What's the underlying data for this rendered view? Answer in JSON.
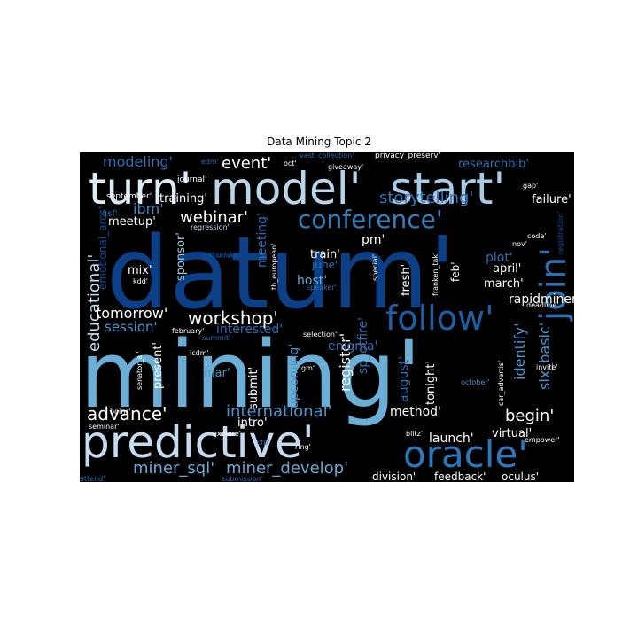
{
  "figure": {
    "title": "Data Mining Topic 2",
    "background": "#000000",
    "palette": [
      "#08306b",
      "#08519c",
      "#2171b5",
      "#4292c6",
      "#6baed6",
      "#9ecae1",
      "#c6dbef",
      "#deebf7"
    ]
  },
  "words": [
    {
      "text": "datum'",
      "color": "#0b3f86"
    },
    {
      "text": "mining'",
      "color": "#6baed6"
    },
    {
      "text": "predictive'",
      "color": "#c6dbef"
    },
    {
      "text": "model'",
      "color": "#b9d5ea"
    },
    {
      "text": "start'",
      "color": "#a7cbe6"
    },
    {
      "text": "turn'",
      "color": "#deebf7"
    },
    {
      "text": "conference'",
      "color": "#2f7fbf"
    },
    {
      "text": "follow'",
      "color": "#1c5fa7"
    },
    {
      "text": "oracle'",
      "color": "#2a78bd"
    },
    {
      "text": "join'",
      "color": "#2c6fb4"
    },
    {
      "text": "workshop'",
      "color": "#ffffff"
    },
    {
      "text": "webinar'",
      "color": "#ffffff"
    },
    {
      "text": "event'",
      "color": "#ffffff"
    },
    {
      "text": "storytelling'",
      "color": "#2f79bb"
    },
    {
      "text": "advance'",
      "color": "#ffffff"
    },
    {
      "text": "international'",
      "color": "#4a95cb"
    },
    {
      "text": "miner_sql'",
      "color": "#6aaad6"
    },
    {
      "text": "miner_develop'",
      "color": "#6aaad6"
    },
    {
      "text": "educational'",
      "color": "#c6dbef"
    },
    {
      "text": "modeling'",
      "color": "#2a70b5"
    },
    {
      "text": "researchbib'",
      "color": "#2a70b5"
    },
    {
      "text": "training'",
      "color": "#ffffff"
    },
    {
      "text": "failure'",
      "color": "#ffffff"
    },
    {
      "text": "ibm'",
      "color": "#3f8ac6"
    },
    {
      "text": "meetup'",
      "color": "#ffffff"
    },
    {
      "text": "pm'",
      "color": "#ffffff"
    },
    {
      "text": "train'",
      "color": "#ffffff"
    },
    {
      "text": "june'",
      "color": "#2a70b5"
    },
    {
      "text": "host'",
      "color": "#6aaad6"
    },
    {
      "text": "plot'",
      "color": "#2a70b5"
    },
    {
      "text": "april'",
      "color": "#ffffff"
    },
    {
      "text": "march'",
      "color": "#ffffff"
    },
    {
      "text": "rapidminer'",
      "color": "#ffffff"
    },
    {
      "text": "tomorrow'",
      "color": "#ffffff"
    },
    {
      "text": "session'",
      "color": "#4a95cb"
    },
    {
      "text": "interested'",
      "color": "#2a70b5"
    },
    {
      "text": "meeting'",
      "color": "#2a70b5"
    },
    {
      "text": "sponsor'",
      "color": "#9ecae1"
    },
    {
      "text": "mix'",
      "color": "#ffffff"
    },
    {
      "text": "emotional_arcs'",
      "color": "#08519c"
    },
    {
      "text": "register'",
      "color": "#ffffff"
    },
    {
      "text": "sp_otfire'",
      "color": "#2a70b5"
    },
    {
      "text": "august'",
      "color": "#2a70b5"
    },
    {
      "text": "tonight'",
      "color": "#ffffff"
    },
    {
      "text": "identify'",
      "color": "#4a95cb"
    },
    {
      "text": "six_basic'",
      "color": "#4a95cb"
    },
    {
      "text": "fresh'",
      "color": "#ffffff"
    },
    {
      "text": "feb'",
      "color": "#ffffff"
    },
    {
      "text": "enigma'",
      "color": "#2a70b5"
    },
    {
      "text": "upcoming'",
      "color": "#4a95cb"
    },
    {
      "text": "submit'",
      "color": "#ffffff"
    },
    {
      "text": "present'",
      "color": "#ffffff"
    },
    {
      "text": "mar'",
      "color": "#4a95cb"
    },
    {
      "text": "method'",
      "color": "#ffffff"
    },
    {
      "text": "begin'",
      "color": "#ffffff"
    },
    {
      "text": "launch'",
      "color": "#ffffff"
    },
    {
      "text": "virtual'",
      "color": "#ffffff"
    },
    {
      "text": "intro'",
      "color": "#ffffff"
    },
    {
      "text": "division'",
      "color": "#ffffff"
    },
    {
      "text": "feedback'",
      "color": "#ffffff"
    },
    {
      "text": "oculus'",
      "color": "#ffffff"
    },
    {
      "text": "journal'",
      "color": "#ffffff"
    },
    {
      "text": "september'",
      "color": "#ffffff"
    },
    {
      "text": "regression'",
      "color": "#c6dbef"
    },
    {
      "text": "edm'",
      "color": "#2a70b5"
    },
    {
      "text": "oct'",
      "color": "#ffffff"
    },
    {
      "text": "vast_collection'",
      "color": "#2a70b5"
    },
    {
      "text": "privacy_preserv'",
      "color": "#ffffff"
    },
    {
      "text": "giveaway'",
      "color": "#ffffff"
    },
    {
      "text": "gap'",
      "color": "#ffffff"
    },
    {
      "text": "registration'",
      "color": "#08519c"
    },
    {
      "text": "code'",
      "color": "#ffffff"
    },
    {
      "text": "nov'",
      "color": "#ffffff"
    },
    {
      "text": "deadline'",
      "color": "#ffffff"
    },
    {
      "text": "kdd'",
      "color": "#ffffff"
    },
    {
      "text": "sql_server'",
      "color": "#08519c"
    },
    {
      "text": "th_european'",
      "color": "#ffffff"
    },
    {
      "text": "speaker'",
      "color": "#2a70b5"
    },
    {
      "text": "special'",
      "color": "#ffffff"
    },
    {
      "text": "franken_tak'",
      "color": "#ffffff"
    },
    {
      "text": "february'",
      "color": "#ffffff"
    },
    {
      "text": "selection'",
      "color": "#ffffff"
    },
    {
      "text": "summit'",
      "color": "#2a70b5"
    },
    {
      "text": "icdm'",
      "color": "#ffffff"
    },
    {
      "text": "explore'",
      "color": "#ffffff"
    },
    {
      "text": "senator_al'",
      "color": "#ffffff"
    },
    {
      "text": "seminar'",
      "color": "#ffffff"
    },
    {
      "text": "boinc'",
      "color": "#ffffff"
    },
    {
      "text": "attend'",
      "color": "#2a70b5"
    },
    {
      "text": "cfp'",
      "color": "#2a70b5"
    },
    {
      "text": "ring'",
      "color": "#ffffff"
    },
    {
      "text": "submission'",
      "color": "#2a70b5"
    },
    {
      "text": "gm'",
      "color": "#ffffff"
    },
    {
      "text": "blitz'",
      "color": "#ffffff"
    },
    {
      "text": "car_advertis'",
      "color": "#ffffff"
    },
    {
      "text": "invite'",
      "color": "#ffffff"
    },
    {
      "text": "october'",
      "color": "#4a95cb"
    },
    {
      "text": "empower'",
      "color": "#ffffff"
    },
    {
      "text": "thursday'",
      "color": "#08519c"
    },
    {
      "text": "asf'",
      "color": "#2a70b5"
    }
  ]
}
